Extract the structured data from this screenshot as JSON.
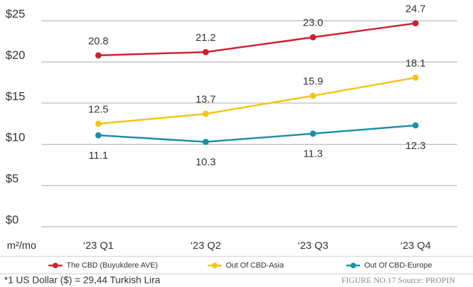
{
  "chart_data": {
    "type": "line",
    "categories": [
      "‘23 Q1",
      "‘23 Q2",
      "‘23 Q3",
      "‘23 Q4"
    ],
    "series": [
      {
        "name": "The CBD (Buyukdere AVE)",
        "color": "#d11f2f",
        "values": [
          20.8,
          21.2,
          23.0,
          24.7
        ],
        "value_labels": [
          "20.8",
          "21.2",
          "23.0",
          "24.7"
        ]
      },
      {
        "name": "Out Of CBD-Asia",
        "color": "#f5c417",
        "values": [
          12.5,
          13.7,
          15.9,
          18.1
        ]
      },
      {
        "name": "Out Of CBD-Europe",
        "color": "#1b8fa6",
        "values": [
          11.1,
          10.3,
          11.3,
          12.3
        ]
      }
    ],
    "ylim": [
      0,
      25
    ],
    "yticks": [
      {
        "value": 0,
        "label": "$0"
      },
      {
        "value": 5,
        "label": "$5"
      },
      {
        "value": 10,
        "label": "$10"
      },
      {
        "value": 15,
        "label": "$15"
      },
      {
        "value": 20,
        "label": "$20"
      },
      {
        "value": 25,
        "label": "$25"
      }
    ],
    "grid": true,
    "y_label": "m²/mo",
    "footnote": "*1 US Dollar ($) = 29,44 Turkish Lira",
    "source": "FIGURE NO.17 Source: PROPIN"
  }
}
